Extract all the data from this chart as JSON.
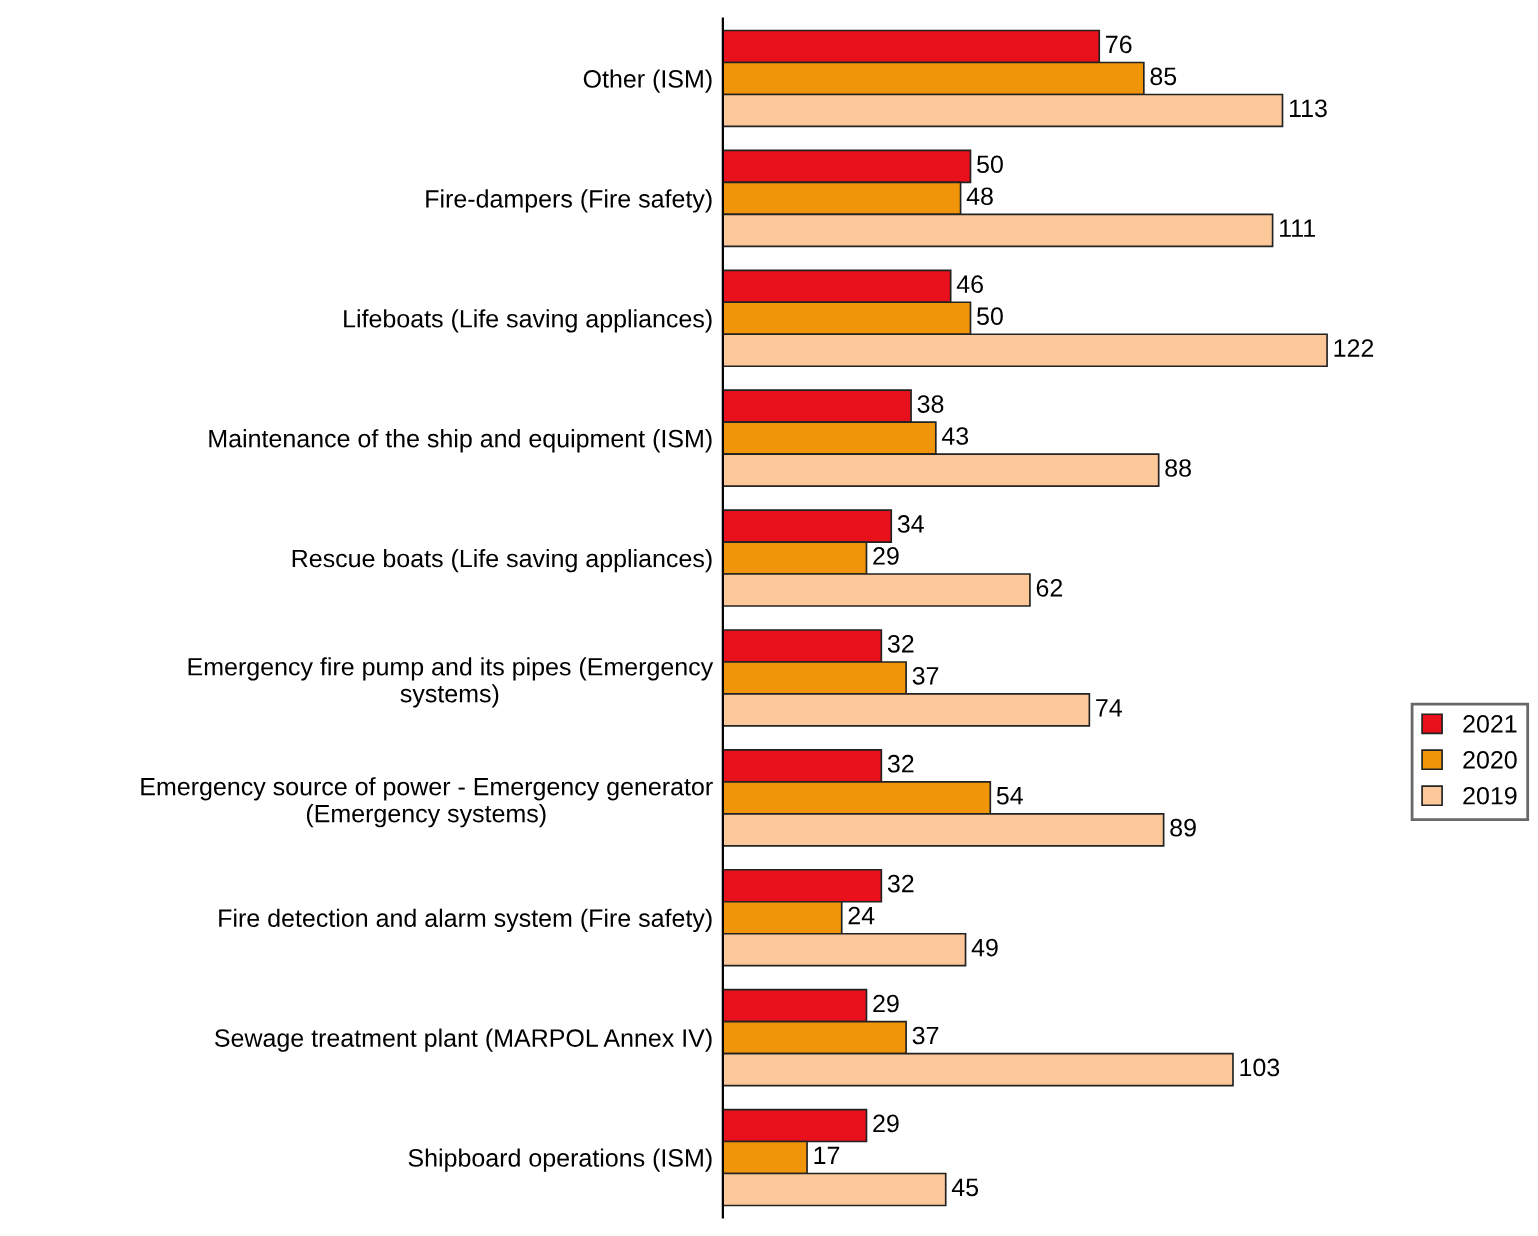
{
  "chart_data": {
    "type": "bar",
    "orientation": "horizontal",
    "data_labels": true,
    "legend": "right",
    "grid": false,
    "categories": [
      "Other (ISM)",
      "Fire-dampers (Fire safety)",
      "Lifeboats (Life saving appliances)",
      "Maintenance of the ship and equipment (ISM)",
      "Rescue boats (Life saving appliances)",
      "Emergency fire pump and its pipes (Emergency\nsystems)",
      "Emergency source of power - Emergency generator\n(Emergency systems)",
      "Fire detection and alarm system (Fire safety)",
      "Sewage treatment plant (MARPOL Annex IV)",
      "Shipboard operations (ISM)"
    ],
    "series": [
      {
        "name": "2021",
        "color": "#e8101a",
        "values": [
          76,
          50,
          46,
          38,
          34,
          32,
          32,
          32,
          29,
          29
        ]
      },
      {
        "name": "2020",
        "color": "#f0950a",
        "values": [
          85,
          48,
          50,
          43,
          29,
          37,
          54,
          24,
          37,
          17
        ]
      },
      {
        "name": "2019",
        "color": "#fcc89a",
        "values": [
          113,
          111,
          122,
          88,
          62,
          74,
          89,
          49,
          103,
          45
        ]
      }
    ]
  }
}
